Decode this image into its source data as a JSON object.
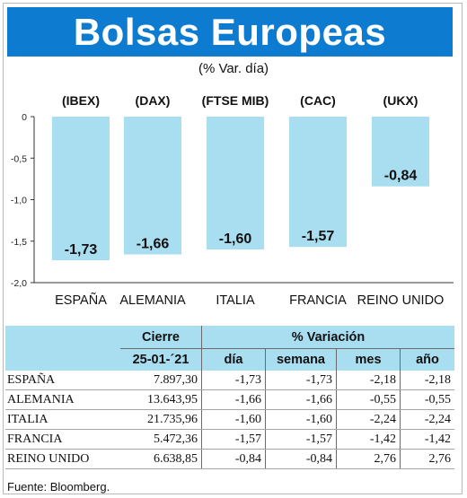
{
  "header": {
    "title": "Bolsas Europeas",
    "subtitle": "(% Var. día)"
  },
  "colors": {
    "title_bg": "#0d7bd0",
    "bar": "#a9ddf0",
    "table_header": "#a9ddf0"
  },
  "chart_data": {
    "type": "bar",
    "categories": [
      "ESPAÑA",
      "ALEMANIA",
      "ITALIA",
      "FRANCIA",
      "REINO UNIDO"
    ],
    "index_labels": [
      "(IBEX)",
      "(DAX)",
      "(FTSE MIB)",
      "(CAC)",
      "(UKX)"
    ],
    "values": [
      -1.73,
      -1.66,
      -1.6,
      -1.57,
      -0.84
    ],
    "value_labels": [
      "-1,73",
      "-1,66",
      "-1,60",
      "-1,57",
      "-0,84"
    ],
    "ylim": [
      -2.0,
      0
    ],
    "yticks": [
      0,
      -0.5,
      -1.0,
      -1.5,
      -2.0
    ],
    "ytick_labels": [
      "0",
      "-0,5",
      "-1,0",
      "-1,5",
      "-2,0"
    ],
    "title": "",
    "xlabel": "",
    "ylabel": "",
    "grid": false
  },
  "table": {
    "group_headers": {
      "close": "Cierre",
      "variation": "% Variación"
    },
    "sub_headers": [
      "25-01-´21",
      "día",
      "semana",
      "mes",
      "año"
    ],
    "rows": [
      {
        "name": "ESPAÑA",
        "close": "7.897,30",
        "dia": "-1,73",
        "semana": "-1,73",
        "mes": "-2,18",
        "anio": "-2,18"
      },
      {
        "name": "ALEMANIA",
        "close": "13.643,95",
        "dia": "-1,66",
        "semana": "-1,66",
        "mes": "-0,55",
        "anio": "-0,55"
      },
      {
        "name": "ITALIA",
        "close": "21.735,96",
        "dia": "-1,60",
        "semana": "-1,60",
        "mes": "-2,24",
        "anio": "-2,24"
      },
      {
        "name": "FRANCIA",
        "close": "5.472,36",
        "dia": "-1,57",
        "semana": "-1,57",
        "mes": "-1,42",
        "anio": "-1,42"
      },
      {
        "name": "REINO UNIDO",
        "close": "6.638,85",
        "dia": "-0,84",
        "semana": "-0,84",
        "mes": "2,76",
        "anio": "2,76"
      }
    ]
  },
  "footer": {
    "source": "Fuente: Bloomberg."
  }
}
